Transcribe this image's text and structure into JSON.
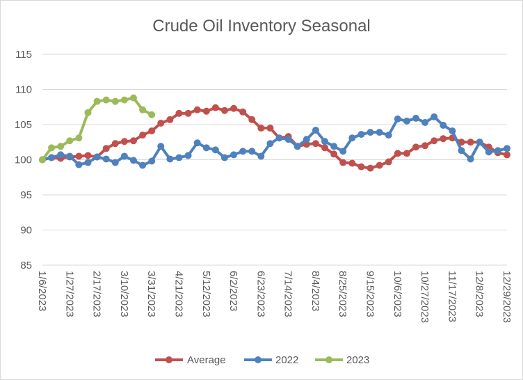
{
  "chart_data": {
    "type": "line",
    "title": "Crude Oil Inventory Seasonal",
    "xlabel": "",
    "ylabel": "",
    "ylim": [
      85,
      115
    ],
    "yticks": [
      85,
      90,
      95,
      100,
      105,
      110,
      115
    ],
    "grid": true,
    "legend": "bottom",
    "x_labels": [
      "1/6/2023",
      "1/27/2023",
      "2/17/2023",
      "3/10/2023",
      "3/31/2023",
      "4/21/2023",
      "5/12/2023",
      "6/2/2023",
      "6/23/2023",
      "7/14/2023",
      "8/4/2023",
      "8/25/2023",
      "9/15/2023",
      "10/6/2023",
      "10/27/2023",
      "11/17/2023",
      "12/8/2023",
      "12/29/2023"
    ],
    "x_label_week_index": [
      0,
      3,
      6,
      9,
      12,
      15,
      18,
      21,
      24,
      27,
      30,
      33,
      36,
      39,
      42,
      45,
      48,
      51
    ],
    "series": [
      {
        "name": "Average",
        "color": "#c0504d",
        "values": [
          100.0,
          100.3,
          100.2,
          100.4,
          100.5,
          100.6,
          100.4,
          101.6,
          102.3,
          102.6,
          102.7,
          103.5,
          104.1,
          105.2,
          105.7,
          106.6,
          106.6,
          107.1,
          106.9,
          107.4,
          107.0,
          107.3,
          106.8,
          105.7,
          104.5,
          104.5,
          103.1,
          103.3,
          101.9,
          102.2,
          102.3,
          101.7,
          100.8,
          99.6,
          99.5,
          99.0,
          98.8,
          99.2,
          99.7,
          100.9,
          100.9,
          101.8,
          102.0,
          102.7,
          103.0,
          103.1,
          102.5,
          102.5,
          102.5,
          101.8,
          101.0,
          100.7
        ]
      },
      {
        "name": "2022",
        "color": "#4f81bd",
        "values": [
          100.0,
          100.3,
          100.7,
          100.5,
          99.3,
          99.6,
          100.4,
          100.1,
          99.6,
          100.5,
          99.9,
          99.2,
          99.8,
          101.9,
          100.1,
          100.3,
          100.6,
          102.4,
          101.7,
          101.4,
          100.3,
          100.7,
          101.2,
          101.2,
          100.5,
          102.3,
          103.1,
          102.9,
          101.9,
          102.9,
          104.2,
          102.6,
          101.9,
          101.2,
          103.1,
          103.6,
          103.9,
          103.9,
          103.5,
          105.8,
          105.5,
          105.9,
          105.3,
          106.1,
          104.9,
          104.1,
          101.3,
          100.1,
          102.5,
          101.1,
          101.3,
          101.6
        ]
      },
      {
        "name": "2023",
        "color": "#9bbb59",
        "values": [
          100.0,
          101.7,
          101.9,
          102.7,
          103.1,
          106.7,
          108.3,
          108.5,
          108.3,
          108.5,
          108.8,
          107.1,
          106.4
        ]
      }
    ]
  }
}
